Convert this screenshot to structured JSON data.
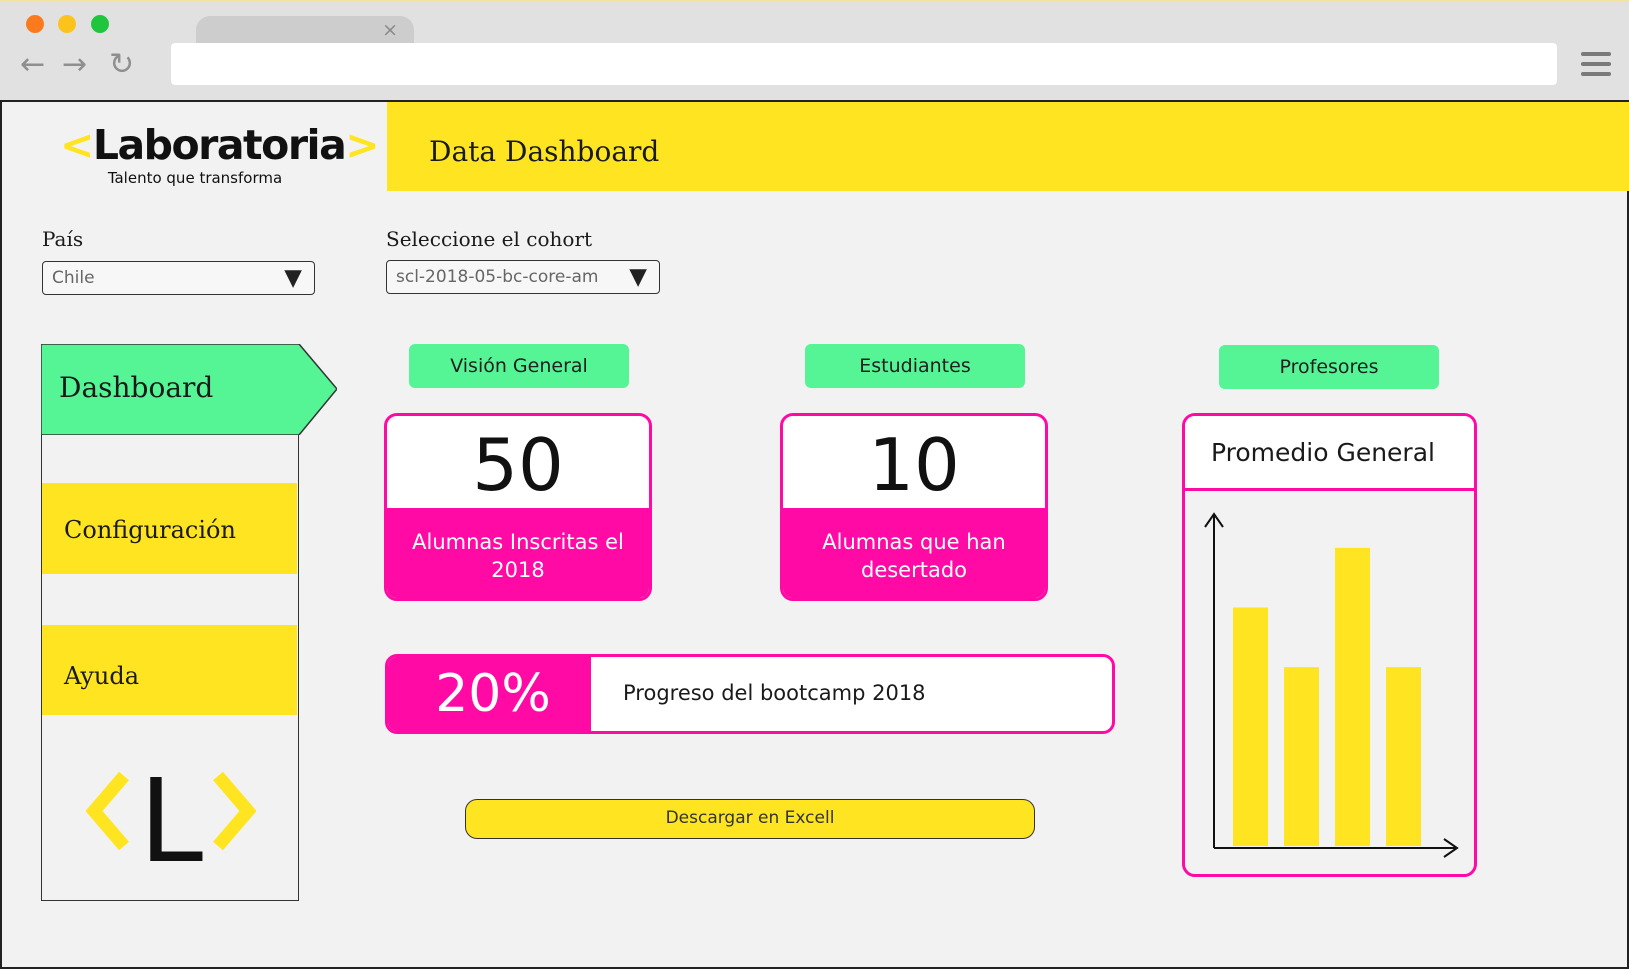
{
  "browser": {
    "tab_close": "×",
    "back": "←",
    "forward": "→",
    "reload": "↻"
  },
  "brand": {
    "left_bracket": "<",
    "name": "Laboratoria",
    "right_bracket": ">",
    "tagline": "Talento que transforma",
    "accent_color": "#ffe521",
    "highlight_color": "#ff0aa5",
    "active_color": "#55f596"
  },
  "header": {
    "title": "Data Dashboard"
  },
  "filters": {
    "country_label": "País",
    "country_value": "Chile",
    "cohort_label": "Seleccione el cohort",
    "cohort_value": "scl-2018-05-bc-core-am",
    "caret": "▼"
  },
  "sidebar": {
    "items": [
      {
        "label": "Dashboard",
        "active": true
      },
      {
        "label": "Configuración",
        "active": false
      },
      {
        "label": "Ayuda",
        "active": false
      }
    ],
    "logo_letter": "L"
  },
  "tabs": [
    "Visión General",
    "Estudiantes",
    "Profesores"
  ],
  "stats": [
    {
      "value": "50",
      "label": "Alumnas Inscritas el 2018"
    },
    {
      "value": "10",
      "label": "Alumnas que han desertado"
    }
  ],
  "progress": {
    "value": "20%",
    "fraction": 0.2,
    "label": "Progreso del bootcamp 2018"
  },
  "actions": {
    "excel_label": "Descargar en Excell"
  },
  "chart_data": {
    "type": "bar",
    "title": "Promedio General",
    "categories": [
      "",
      "",
      "",
      ""
    ],
    "values": [
      80,
      60,
      100,
      60
    ],
    "ylim": [
      0,
      110
    ],
    "bar_color": "#ffe521",
    "grid": false
  }
}
